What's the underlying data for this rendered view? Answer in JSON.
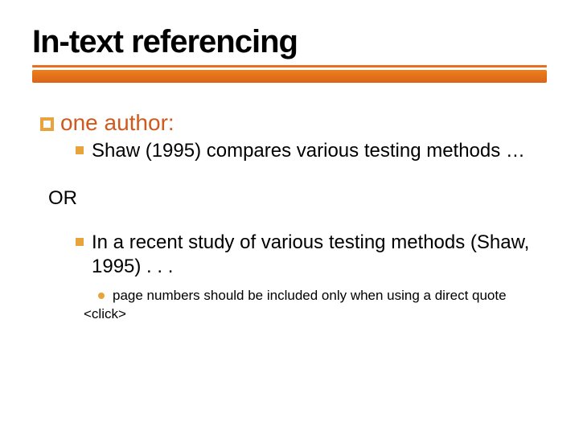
{
  "title": "In-text referencing",
  "title_bar": {
    "thick_color_top": "#ef7f1a",
    "thick_color_bottom": "#d9641a",
    "thin_color": "#e86f1f"
  },
  "bullet_colors": {
    "square_hollow_border": "#e8a33d",
    "square_solid": "#e8a33d",
    "dot": "#e8a33d"
  },
  "text_colors": {
    "heading": "#cf5a1e",
    "body": "#000000"
  },
  "content": {
    "level1_heading": "one author:",
    "item1": "Shaw (1995) compares various testing methods …",
    "or_label": "OR",
    "item2": "In a recent study of various testing methods (Shaw, 1995) . . .",
    "note": "page numbers should be included only when using a direct quote",
    "click_marker": "<click>"
  }
}
